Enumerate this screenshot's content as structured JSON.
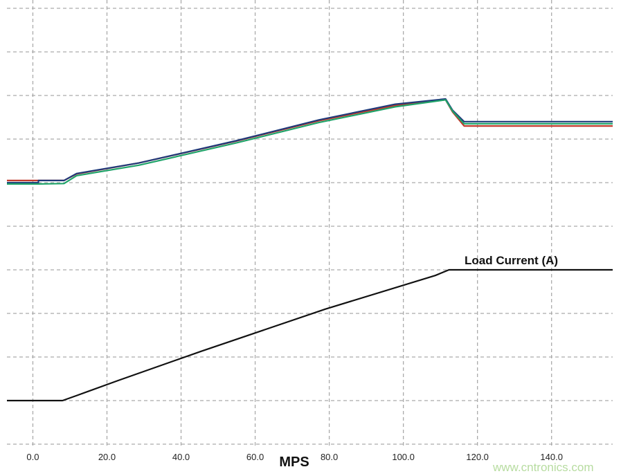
{
  "chart_data": {
    "type": "line",
    "title": "",
    "xlabel": "MPS",
    "ylabel": "",
    "xlim": [
      -7,
      156.5
    ],
    "ylim": [
      0,
      10
    ],
    "grid": true,
    "x_ticks": [
      "0.0",
      "20.0",
      "40.0",
      "60.0",
      "80.0",
      "100.0",
      "120.0",
      "140.0"
    ],
    "x_tick_values": [
      0,
      20,
      40,
      60,
      80,
      100,
      120,
      140
    ],
    "y_gridlines": [
      0,
      1,
      2,
      3,
      4,
      5,
      6,
      7,
      8,
      9,
      10
    ],
    "annotations": [
      {
        "text": "Load Current (A)",
        "series": "load"
      }
    ],
    "watermark": "www.cntronics.com",
    "series": [
      {
        "id": "red",
        "color": "#c0392b",
        "points": [
          [
            -7,
            6.05
          ],
          [
            8.4,
            6.05
          ],
          [
            11.8,
            6.2
          ],
          [
            28.6,
            6.45
          ],
          [
            54.8,
            6.95
          ],
          [
            77.2,
            7.42
          ],
          [
            97.8,
            7.77
          ],
          [
            111.4,
            7.9
          ],
          [
            113.3,
            7.62
          ],
          [
            116.4,
            7.3
          ],
          [
            156.5,
            7.3
          ]
        ]
      },
      {
        "id": "blue",
        "color": "#1f3a7a",
        "points": [
          [
            -7,
            6.0
          ],
          [
            1.5,
            6.0
          ],
          [
            1.5,
            6.05
          ],
          [
            8.4,
            6.05
          ],
          [
            11.8,
            6.21
          ],
          [
            28.6,
            6.45
          ],
          [
            54.8,
            6.96
          ],
          [
            77.2,
            7.44
          ],
          [
            97.8,
            7.8
          ],
          [
            111.4,
            7.92
          ],
          [
            113.3,
            7.66
          ],
          [
            116.4,
            7.4
          ],
          [
            156.5,
            7.4
          ]
        ]
      },
      {
        "id": "green",
        "color": "#1fa36a",
        "points": [
          [
            -7,
            5.97
          ],
          [
            1.5,
            5.97
          ],
          [
            8.4,
            5.98
          ],
          [
            11.8,
            6.16
          ],
          [
            28.6,
            6.4
          ],
          [
            54.8,
            6.91
          ],
          [
            77.2,
            7.38
          ],
          [
            97.8,
            7.74
          ],
          [
            111.4,
            7.9
          ],
          [
            113.3,
            7.64
          ],
          [
            116.4,
            7.35
          ],
          [
            156.5,
            7.35
          ]
        ]
      },
      {
        "id": "load",
        "name": "Load Current (A)",
        "color": "#111111",
        "points": [
          [
            -7,
            1.0
          ],
          [
            8,
            1.0
          ],
          [
            12,
            1.12
          ],
          [
            23,
            1.46
          ],
          [
            45.4,
            2.13
          ],
          [
            79,
            3.1
          ],
          [
            108.6,
            3.87
          ],
          [
            112.3,
            4.0
          ],
          [
            156.5,
            4.0
          ]
        ]
      }
    ]
  }
}
